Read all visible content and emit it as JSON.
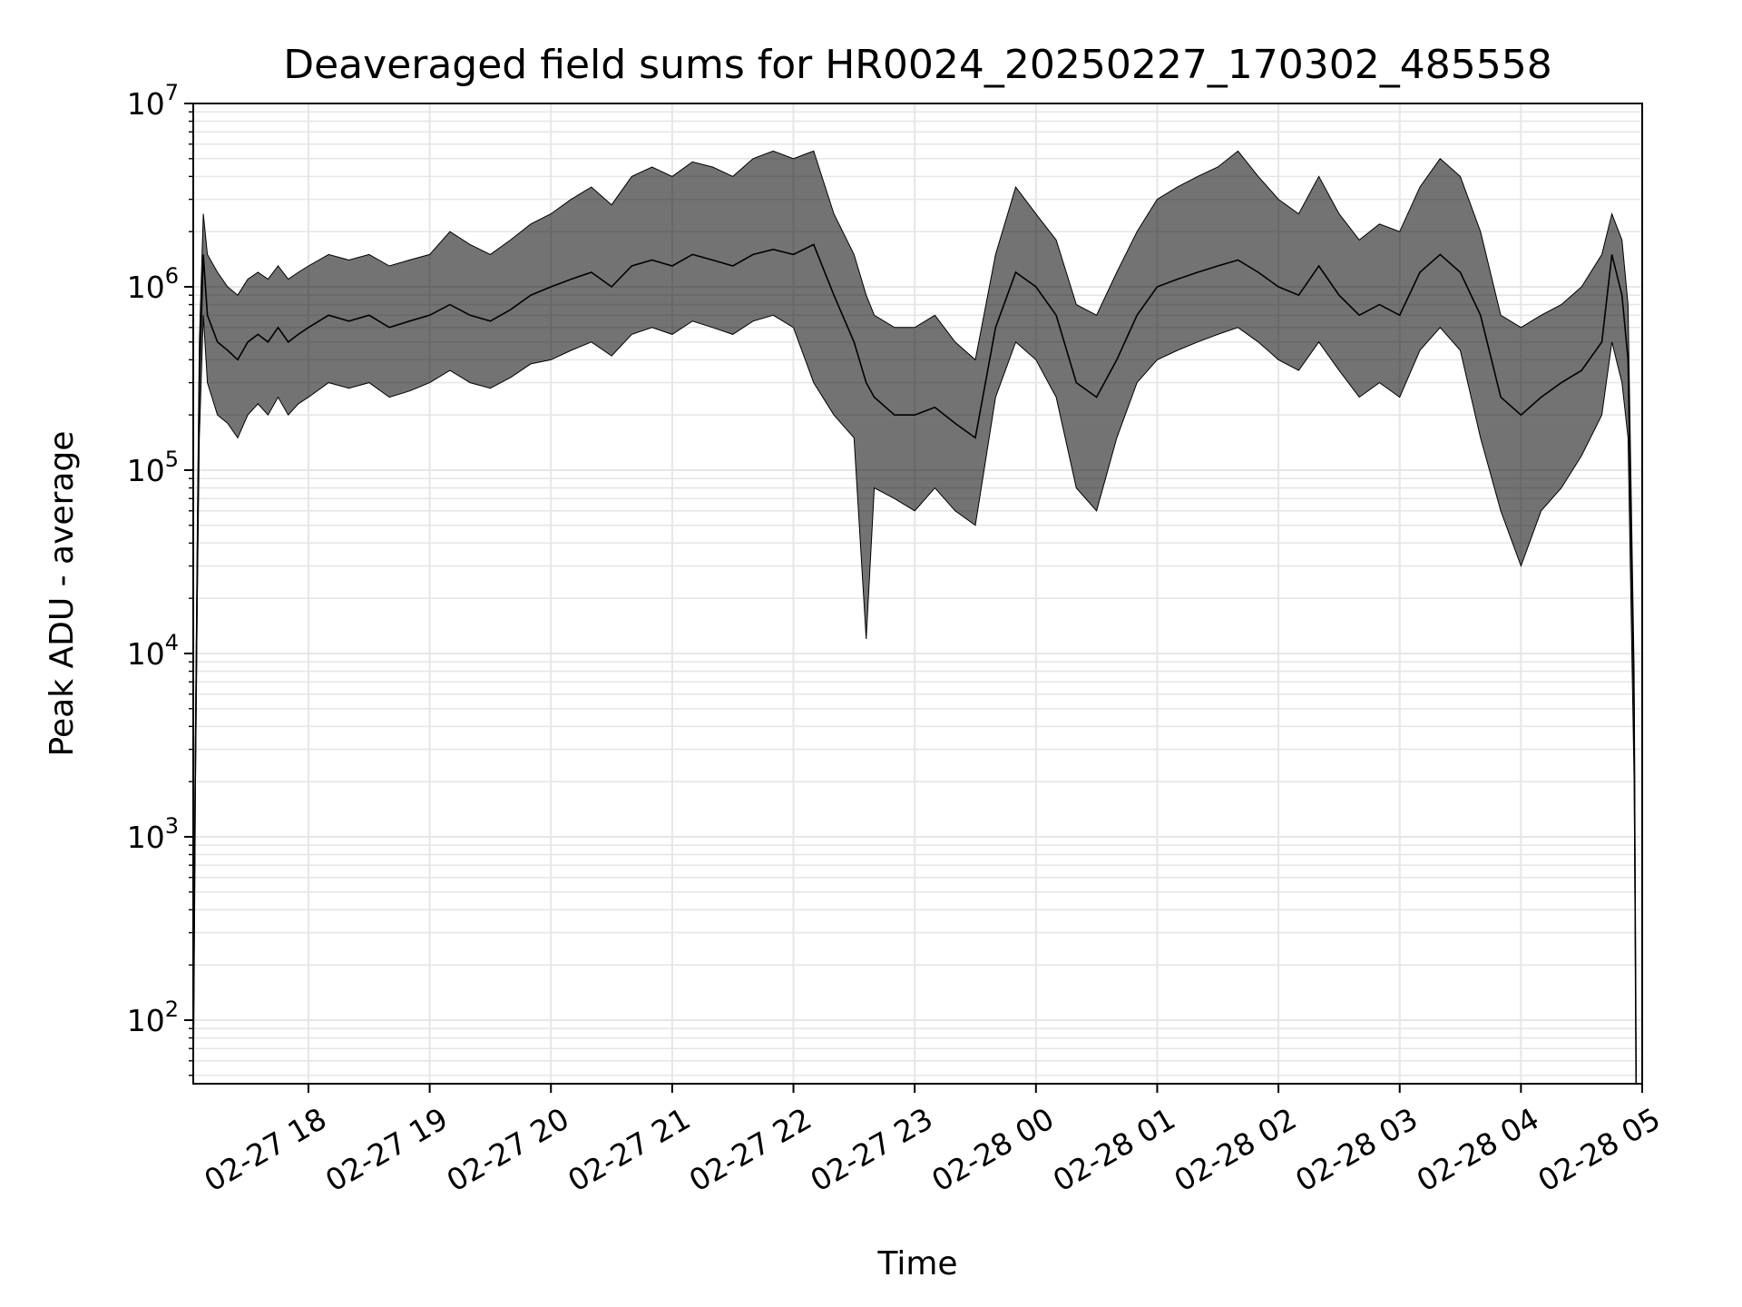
{
  "chart_data": {
    "type": "line",
    "title": "Deaveraged field sums for HR0024_20250227_170302_485558",
    "xlabel": "Time",
    "ylabel": "Peak ADU - average",
    "yscale": "log",
    "ylim": [
      45,
      10000000
    ],
    "xlim": [
      "02-27 17:03",
      "02-28 05:00"
    ],
    "grid": true,
    "line_color": "#000000",
    "grid_color": "#e6e6e6",
    "x_ticks": [
      "02-27 18",
      "02-27 19",
      "02-27 20",
      "02-27 21",
      "02-27 22",
      "02-27 23",
      "02-28 00",
      "02-28 01",
      "02-28 02",
      "02-28 03",
      "02-28 04",
      "02-28 05"
    ],
    "y_ticks": [
      {
        "value": 100,
        "base": "10",
        "exp": "2"
      },
      {
        "value": 1000,
        "base": "10",
        "exp": "3"
      },
      {
        "value": 10000,
        "base": "10",
        "exp": "4"
      },
      {
        "value": 100000,
        "base": "10",
        "exp": "5"
      },
      {
        "value": 1000000,
        "base": "10",
        "exp": "6"
      },
      {
        "value": 10000000,
        "base": "10",
        "exp": "7"
      }
    ],
    "series": [
      {
        "x": [
          "02-27 17:03",
          "02-27 17:04",
          "02-27 17:05",
          "02-27 17:06",
          "02-27 17:08",
          "02-27 17:10",
          "02-27 17:15",
          "02-27 17:20",
          "02-27 17:25",
          "02-27 17:30",
          "02-27 17:35",
          "02-27 17:40",
          "02-27 17:45",
          "02-27 17:50",
          "02-27 17:55",
          "02-27 18:00",
          "02-27 18:10",
          "02-27 18:20",
          "02-27 18:30",
          "02-27 18:40",
          "02-27 18:50",
          "02-27 19:00",
          "02-27 19:10",
          "02-27 19:20",
          "02-27 19:30",
          "02-27 19:40",
          "02-27 19:50",
          "02-27 20:00",
          "02-27 20:10",
          "02-27 20:20",
          "02-27 20:30",
          "02-27 20:40",
          "02-27 20:50",
          "02-27 21:00",
          "02-27 21:10",
          "02-27 21:20",
          "02-27 21:30",
          "02-27 21:40",
          "02-27 21:50",
          "02-27 22:00",
          "02-27 22:10",
          "02-27 22:20",
          "02-27 22:30",
          "02-27 22:36",
          "02-27 22:40",
          "02-27 22:50",
          "02-27 23:00",
          "02-27 23:10",
          "02-27 23:20",
          "02-27 23:30",
          "02-27 23:40",
          "02-27 23:50",
          "02-28 00:00",
          "02-28 00:10",
          "02-28 00:20",
          "02-28 00:30",
          "02-28 00:40",
          "02-28 00:50",
          "02-28 01:00",
          "02-28 01:10",
          "02-28 01:20",
          "02-28 01:30",
          "02-28 01:40",
          "02-28 01:50",
          "02-28 02:00",
          "02-28 02:10",
          "02-28 02:20",
          "02-28 02:30",
          "02-28 02:40",
          "02-28 02:50",
          "02-28 03:00",
          "02-28 03:10",
          "02-28 03:20",
          "02-28 03:30",
          "02-28 03:40",
          "02-28 03:50",
          "02-28 04:00",
          "02-28 04:10",
          "02-28 04:20",
          "02-28 04:30",
          "02-28 04:40",
          "02-28 04:45",
          "02-28 04:50",
          "02-28 04:53",
          "02-28 04:56",
          "02-28 04:57"
        ],
        "y": [
          50,
          2000,
          30000,
          300000,
          1500000,
          700000,
          500000,
          450000,
          400000,
          500000,
          550000,
          500000,
          600000,
          500000,
          550000,
          600000,
          700000,
          650000,
          700000,
          600000,
          650000,
          700000,
          800000,
          700000,
          650000,
          750000,
          900000,
          1000000,
          1100000,
          1200000,
          1000000,
          1300000,
          1400000,
          1300000,
          1500000,
          1400000,
          1300000,
          1500000,
          1600000,
          1500000,
          1700000,
          900000,
          500000,
          300000,
          250000,
          200000,
          200000,
          220000,
          180000,
          150000,
          600000,
          1200000,
          1000000,
          700000,
          300000,
          250000,
          400000,
          700000,
          1000000,
          1100000,
          1200000,
          1300000,
          1400000,
          1200000,
          1000000,
          900000,
          1300000,
          900000,
          700000,
          800000,
          700000,
          1200000,
          1500000,
          1200000,
          700000,
          250000,
          200000,
          250000,
          300000,
          350000,
          500000,
          1500000,
          900000,
          400000,
          5000,
          45
        ],
        "y_min": [
          45,
          1500,
          20000,
          150000,
          700000,
          300000,
          200000,
          180000,
          150000,
          200000,
          230000,
          200000,
          250000,
          200000,
          230000,
          250000,
          300000,
          280000,
          300000,
          250000,
          270000,
          300000,
          350000,
          300000,
          280000,
          320000,
          380000,
          400000,
          450000,
          500000,
          420000,
          550000,
          600000,
          550000,
          650000,
          600000,
          550000,
          650000,
          700000,
          600000,
          300000,
          200000,
          150000,
          12000,
          80000,
          70000,
          60000,
          80000,
          60000,
          50000,
          250000,
          500000,
          400000,
          250000,
          80000,
          60000,
          150000,
          300000,
          400000,
          450000,
          500000,
          550000,
          600000,
          500000,
          400000,
          350000,
          500000,
          350000,
          250000,
          300000,
          250000,
          450000,
          600000,
          450000,
          150000,
          60000,
          30000,
          60000,
          80000,
          120000,
          200000,
          500000,
          300000,
          150000,
          2000,
          45
        ],
        "y_max": [
          60,
          3000,
          50000,
          500000,
          2500000,
          1500000,
          1200000,
          1000000,
          900000,
          1100000,
          1200000,
          1100000,
          1300000,
          1100000,
          1200000,
          1300000,
          1500000,
          1400000,
          1500000,
          1300000,
          1400000,
          1500000,
          2000000,
          1700000,
          1500000,
          1800000,
          2200000,
          2500000,
          3000000,
          3500000,
          2800000,
          4000000,
          4500000,
          4000000,
          4800000,
          4500000,
          4000000,
          5000000,
          5500000,
          5000000,
          5500000,
          2500000,
          1500000,
          900000,
          700000,
          600000,
          600000,
          700000,
          500000,
          400000,
          1500000,
          3500000,
          2500000,
          1800000,
          800000,
          700000,
          1200000,
          2000000,
          3000000,
          3500000,
          4000000,
          4500000,
          5500000,
          4000000,
          3000000,
          2500000,
          4000000,
          2500000,
          1800000,
          2200000,
          2000000,
          3500000,
          5000000,
          4000000,
          2000000,
          700000,
          600000,
          700000,
          800000,
          1000000,
          1500000,
          2500000,
          1800000,
          800000,
          8000,
          50
        ]
      }
    ]
  }
}
